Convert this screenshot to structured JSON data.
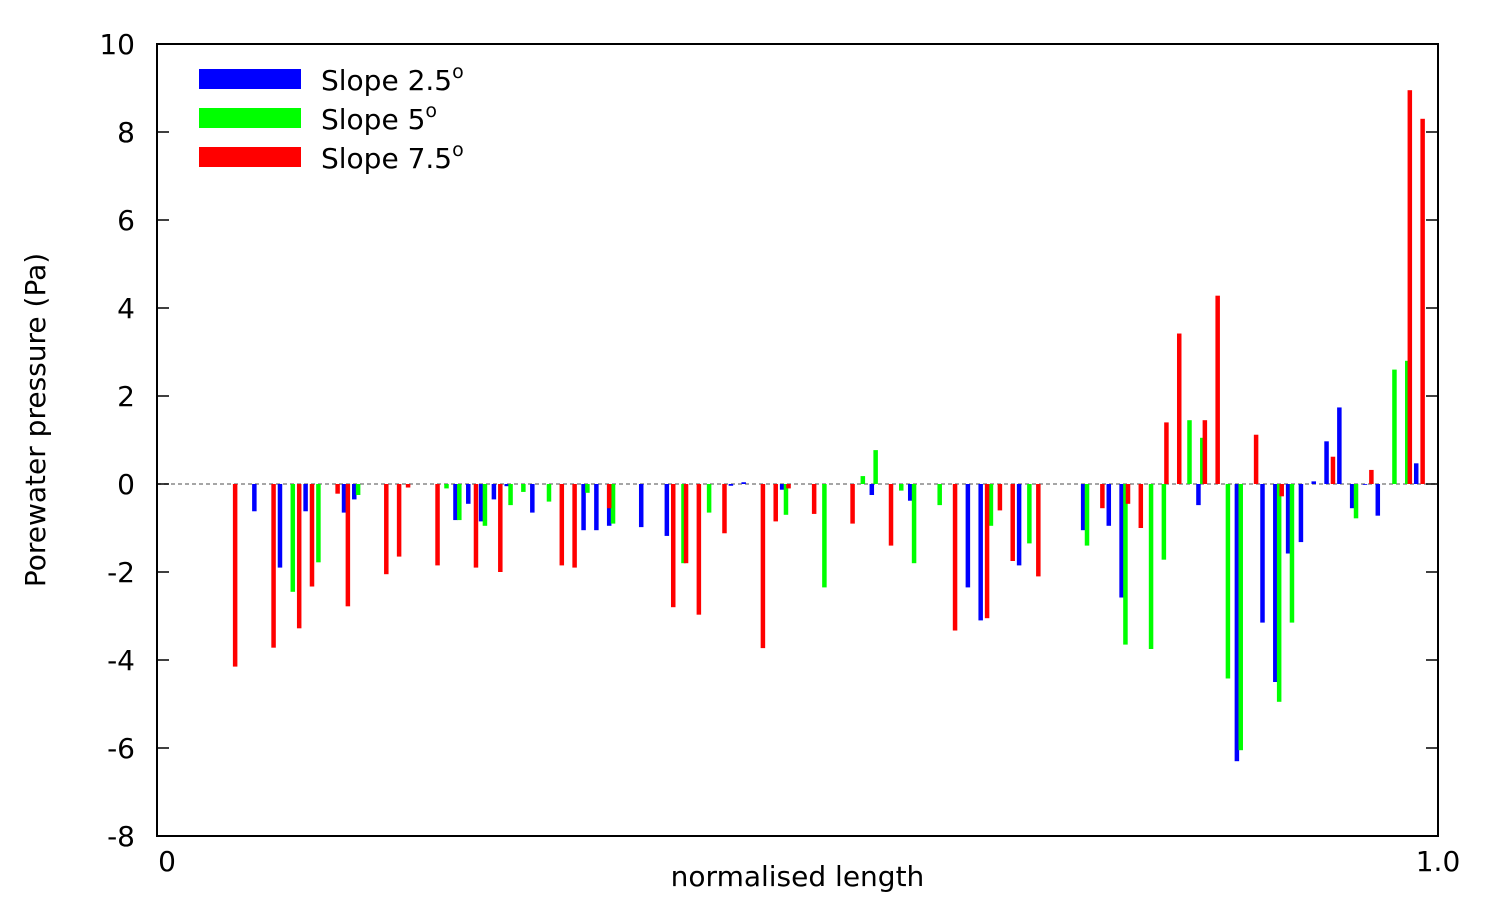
{
  "chart_data": {
    "type": "bar",
    "title": "",
    "xlabel": "normalised length",
    "ylabel": "Porewater pressure (Pa)",
    "xlim": [
      0,
      1.0
    ],
    "ylim": [
      -8,
      10
    ],
    "x_ticks": [
      {
        "value": 0,
        "label": "0"
      },
      {
        "value": 1.0,
        "label": "1.0"
      }
    ],
    "y_ticks": [
      {
        "value": 10,
        "label": "10"
      },
      {
        "value": 8,
        "label": "8"
      },
      {
        "value": 6,
        "label": "6"
      },
      {
        "value": 4,
        "label": "4"
      },
      {
        "value": 2,
        "label": "2"
      },
      {
        "value": 0,
        "label": "0"
      },
      {
        "value": -2,
        "label": "-2"
      },
      {
        "value": -4,
        "label": "-4"
      },
      {
        "value": -6,
        "label": "-6"
      },
      {
        "value": -8,
        "label": "-8"
      }
    ],
    "grid": false,
    "legend_position": "top-left",
    "series": [
      {
        "name": "Slope 2.5",
        "name_base": "Slope 2.5",
        "name_superscript": "o",
        "color": "#0000ff",
        "points": [
          [
            0.076,
            -0.62
          ],
          [
            0.096,
            -1.9
          ],
          [
            0.116,
            -0.62
          ],
          [
            0.146,
            -0.65
          ],
          [
            0.154,
            -0.35
          ],
          [
            0.233,
            -0.82
          ],
          [
            0.243,
            -0.45
          ],
          [
            0.253,
            -0.85
          ],
          [
            0.263,
            -0.35
          ],
          [
            0.273,
            -0.05
          ],
          [
            0.293,
            -0.65
          ],
          [
            0.333,
            -1.05
          ],
          [
            0.343,
            -1.05
          ],
          [
            0.353,
            -0.95
          ],
          [
            0.378,
            -0.98
          ],
          [
            0.398,
            -1.18
          ],
          [
            0.448,
            -0.04
          ],
          [
            0.458,
            0.04
          ],
          [
            0.488,
            -0.13
          ],
          [
            0.558,
            -0.25
          ],
          [
            0.588,
            -0.38
          ],
          [
            0.633,
            -2.35
          ],
          [
            0.643,
            -3.1
          ],
          [
            0.673,
            -1.85
          ],
          [
            0.723,
            -1.05
          ],
          [
            0.743,
            -0.95
          ],
          [
            0.753,
            -2.58
          ],
          [
            0.813,
            -0.48
          ],
          [
            0.843,
            -6.3
          ],
          [
            0.863,
            -3.15
          ],
          [
            0.873,
            -4.5
          ],
          [
            0.883,
            -1.58
          ],
          [
            0.893,
            -1.32
          ],
          [
            0.903,
            0.06
          ],
          [
            0.913,
            0.97
          ],
          [
            0.923,
            1.74
          ],
          [
            0.933,
            -0.55
          ],
          [
            0.943,
            0.0
          ],
          [
            0.953,
            -0.72
          ],
          [
            0.983,
            0.47
          ]
        ]
      },
      {
        "name": "Slope 5",
        "name_base": "Slope 5",
        "name_superscript": "o",
        "color": "#00ff00",
        "points": [
          [
            0.106,
            -2.45
          ],
          [
            0.126,
            -1.78
          ],
          [
            0.157,
            -0.25
          ],
          [
            0.226,
            -0.1
          ],
          [
            0.236,
            -0.82
          ],
          [
            0.256,
            -0.95
          ],
          [
            0.276,
            -0.48
          ],
          [
            0.286,
            -0.18
          ],
          [
            0.306,
            -0.4
          ],
          [
            0.336,
            -0.2
          ],
          [
            0.356,
            -0.9
          ],
          [
            0.411,
            -1.8
          ],
          [
            0.431,
            -0.65
          ],
          [
            0.491,
            -0.7
          ],
          [
            0.521,
            -2.35
          ],
          [
            0.551,
            0.18
          ],
          [
            0.561,
            0.77
          ],
          [
            0.581,
            -0.15
          ],
          [
            0.591,
            -1.8
          ],
          [
            0.611,
            -0.48
          ],
          [
            0.651,
            -0.95
          ],
          [
            0.681,
            -1.35
          ],
          [
            0.726,
            -1.4
          ],
          [
            0.756,
            -3.65
          ],
          [
            0.776,
            -3.75
          ],
          [
            0.786,
            -1.72
          ],
          [
            0.806,
            1.45
          ],
          [
            0.816,
            1.05
          ],
          [
            0.836,
            -4.42
          ],
          [
            0.846,
            -6.05
          ],
          [
            0.876,
            -4.95
          ],
          [
            0.886,
            -3.15
          ],
          [
            0.936,
            -0.78
          ],
          [
            0.966,
            2.6
          ],
          [
            0.976,
            2.8
          ]
        ]
      },
      {
        "name": "Slope 7.5",
        "name_base": "Slope 7.5",
        "name_superscript": "o",
        "color": "#ff0000",
        "points": [
          [
            0.061,
            -4.15
          ],
          [
            0.091,
            -3.72
          ],
          [
            0.111,
            -3.28
          ],
          [
            0.121,
            -2.33
          ],
          [
            0.141,
            -0.22
          ],
          [
            0.149,
            -2.78
          ],
          [
            0.179,
            -2.05
          ],
          [
            0.189,
            -1.65
          ],
          [
            0.196,
            -0.08
          ],
          [
            0.219,
            -1.85
          ],
          [
            0.249,
            -1.9
          ],
          [
            0.268,
            -2.0
          ],
          [
            0.316,
            -1.85
          ],
          [
            0.326,
            -1.9
          ],
          [
            0.353,
            -0.55
          ],
          [
            0.403,
            -2.8
          ],
          [
            0.413,
            -1.8
          ],
          [
            0.423,
            -2.97
          ],
          [
            0.443,
            -1.12
          ],
          [
            0.473,
            -3.73
          ],
          [
            0.483,
            -0.85
          ],
          [
            0.493,
            -0.1
          ],
          [
            0.513,
            -0.68
          ],
          [
            0.543,
            -0.9
          ],
          [
            0.573,
            -1.4
          ],
          [
            0.623,
            -3.33
          ],
          [
            0.648,
            -3.05
          ],
          [
            0.658,
            -0.6
          ],
          [
            0.668,
            -1.75
          ],
          [
            0.688,
            -2.1
          ],
          [
            0.738,
            -0.55
          ],
          [
            0.758,
            -0.45
          ],
          [
            0.768,
            -1.0
          ],
          [
            0.788,
            1.4
          ],
          [
            0.798,
            3.42
          ],
          [
            0.818,
            1.45
          ],
          [
            0.828,
            4.28
          ],
          [
            0.858,
            1.12
          ],
          [
            0.878,
            -0.28
          ],
          [
            0.918,
            0.62
          ],
          [
            0.948,
            0.32
          ],
          [
            0.978,
            8.95
          ],
          [
            0.988,
            8.3
          ]
        ]
      }
    ]
  }
}
